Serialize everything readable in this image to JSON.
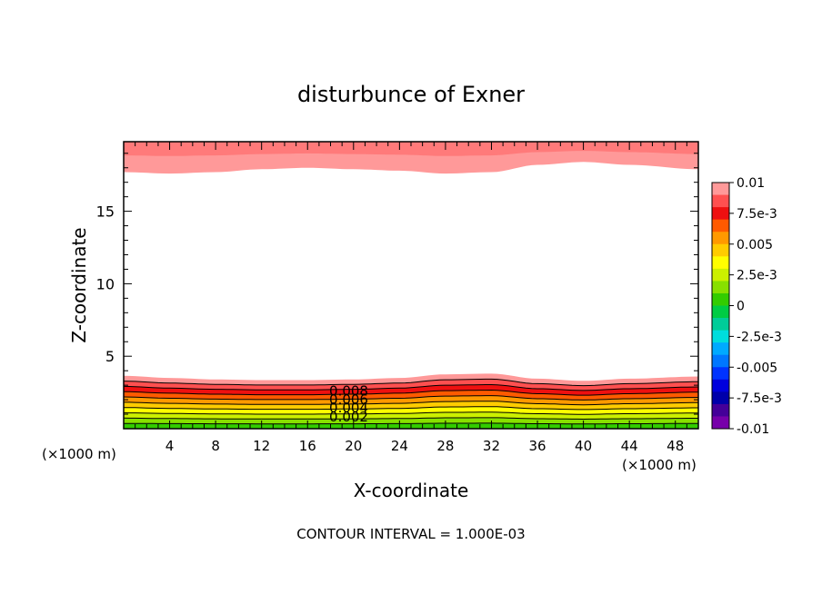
{
  "chart_data": {
    "type": "contour",
    "title": "disturbunce of Exner",
    "xlabel": "X-coordinate",
    "ylabel": "Z-coordinate",
    "x_unit": "(×1000 m)",
    "x_unit_right": "(×1000 m)",
    "footer": "CONTOUR INTERVAL = 1.000E-03",
    "xlim": [
      0,
      50
    ],
    "ylim": [
      0,
      19.8
    ],
    "x_ticks": [
      4,
      8,
      12,
      16,
      20,
      24,
      28,
      32,
      36,
      40,
      44,
      48
    ],
    "y_ticks": [
      5,
      10,
      15
    ],
    "contour_interval": 0.001,
    "contour_labels": [
      {
        "text": "0.008",
        "x": 18,
        "z": 2.6
      },
      {
        "text": "0.006",
        "x": 18,
        "z": 2.0
      },
      {
        "text": "0.004",
        "x": 18,
        "z": 1.45
      },
      {
        "text": "0.002",
        "x": 18,
        "z": 0.8
      }
    ],
    "colorbar": {
      "labels": [
        "0.01",
        "7.5e-3",
        "0.005",
        "2.5e-3",
        "0",
        "-2.5e-3",
        "-0.005",
        "-7.5e-3",
        "-0.01"
      ],
      "colors": [
        "#ff9999",
        "#ff5050",
        "#ee1010",
        "#ff5a00",
        "#ff9900",
        "#ffcc00",
        "#ffff00",
        "#ccf000",
        "#88e000",
        "#33cc00",
        "#00cc44",
        "#00cc99",
        "#00dddd",
        "#00aaff",
        "#0077ff",
        "#0033ff",
        "#0000dd",
        "#0000aa",
        "#440099",
        "#7700aa"
      ],
      "vmin": -0.01,
      "vmax": 0.01
    },
    "bottom_layer": {
      "surface_height": [
        3.65,
        3.5,
        3.4,
        3.35,
        3.35,
        3.4,
        3.5,
        3.75,
        3.8,
        3.45,
        3.3,
        3.45,
        3.6
      ],
      "sample_x": [
        0,
        4,
        8,
        12,
        16,
        20,
        24,
        28,
        32,
        36,
        40,
        44,
        50
      ]
    },
    "top_layer": {
      "lower_edge": [
        17.7,
        17.6,
        17.7,
        17.9,
        18.0,
        17.9,
        17.8,
        17.6,
        17.7,
        18.2,
        18.4,
        18.2,
        17.9
      ],
      "sample_x": [
        0,
        4,
        8,
        12,
        16,
        20,
        24,
        28,
        32,
        36,
        40,
        44,
        50
      ]
    }
  }
}
